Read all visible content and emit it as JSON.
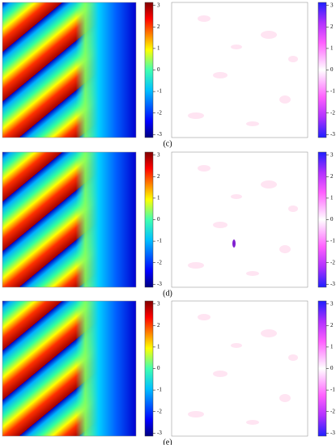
{
  "panels": [
    {
      "label": "(c)"
    },
    {
      "label": "(d)"
    },
    {
      "label": "(e)"
    }
  ],
  "colorbar_left": {
    "lim": [
      -3.14,
      3.14
    ],
    "ticks": [
      3,
      2,
      1,
      0,
      -1,
      -2,
      -3
    ]
  },
  "colorbar_right": {
    "lim": [
      -3.14,
      3.14
    ],
    "ticks": [
      3,
      2,
      1,
      0,
      -1,
      -2,
      -3
    ]
  }
}
